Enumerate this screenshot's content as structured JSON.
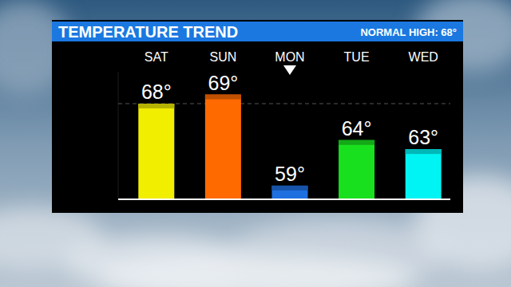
{
  "chart_data": {
    "type": "bar",
    "title": "TEMPERATURE TREND",
    "categories": [
      "SAT",
      "SUN",
      "MON",
      "TUE",
      "WED"
    ],
    "values": [
      68,
      69,
      59,
      64,
      63
    ],
    "value_labels": [
      "68°",
      "69°",
      "59°",
      "64°",
      "63°"
    ],
    "data_labels": true,
    "colors": [
      "#f2ee00",
      "#ff6a00",
      "#1e6fe0",
      "#19e01e",
      "#00f4f4"
    ],
    "ylim": [
      57.5,
      71.5
    ],
    "tick_labels": false,
    "grid": false,
    "reference_line": {
      "value": 68,
      "label": "NORMAL HIGH: 68°"
    }
  }
}
